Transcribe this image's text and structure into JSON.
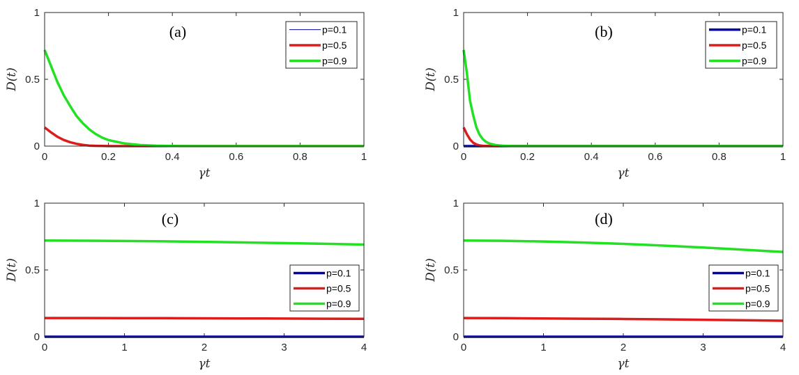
{
  "chart_data": [
    {
      "type": "line",
      "panel_label": "(a)",
      "xlabel": "γt",
      "ylabel": "D(t)",
      "xlim": [
        0,
        1
      ],
      "ylim": [
        0,
        1
      ],
      "xticks": [
        0,
        0.2,
        0.4,
        0.6,
        0.8,
        1
      ],
      "xtick_labels": [
        "0",
        "0.2",
        "0.4",
        "0.6",
        "0.8",
        "1"
      ],
      "yticks": [
        0,
        0.5,
        1
      ],
      "ytick_labels": [
        "0",
        "0.5",
        "1"
      ],
      "grid": false,
      "legend_position": "top-right",
      "x": [
        0,
        0.02,
        0.04,
        0.06,
        0.08,
        0.1,
        0.12,
        0.14,
        0.16,
        0.18,
        0.2,
        0.25,
        0.3,
        0.35,
        0.4,
        0.5,
        0.6,
        0.7,
        0.8,
        0.9,
        1
      ],
      "series": [
        {
          "name": "p=0.1",
          "color": "#0000aa",
          "line_width": "thin",
          "values": [
            0,
            0,
            0,
            0,
            0,
            0,
            0,
            0,
            0,
            0,
            0,
            0,
            0,
            0,
            0,
            0,
            0,
            0,
            0,
            0,
            0
          ]
        },
        {
          "name": "p=0.5",
          "color": "#dd1c1c",
          "line_width": "thick",
          "values": [
            0.14,
            0.103,
            0.07,
            0.046,
            0.029,
            0.017,
            0.009,
            0.004,
            0.002,
            0.001,
            0,
            0,
            0,
            0,
            0,
            0,
            0,
            0,
            0,
            0,
            0
          ]
        },
        {
          "name": "p=0.9",
          "color": "#22e022",
          "line_width": "thick",
          "values": [
            0.72,
            0.6,
            0.48,
            0.38,
            0.3,
            0.225,
            0.17,
            0.125,
            0.09,
            0.064,
            0.045,
            0.02,
            0.008,
            0.003,
            0.001,
            0,
            0,
            0,
            0,
            0,
            0
          ]
        }
      ]
    },
    {
      "type": "line",
      "panel_label": "(b)",
      "xlabel": "γt",
      "ylabel": "D(t)",
      "xlim": [
        0,
        1
      ],
      "ylim": [
        0,
        1
      ],
      "xticks": [
        0,
        0.2,
        0.4,
        0.6,
        0.8,
        1
      ],
      "xtick_labels": [
        "0",
        "0.2",
        "0.4",
        "0.6",
        "0.8",
        "1"
      ],
      "yticks": [
        0,
        0.5,
        1
      ],
      "ytick_labels": [
        "0",
        "0.5",
        "1"
      ],
      "grid": false,
      "legend_position": "top-right",
      "x": [
        0,
        0.01,
        0.02,
        0.03,
        0.04,
        0.05,
        0.06,
        0.07,
        0.08,
        0.1,
        0.12,
        0.14,
        0.16,
        0.2,
        0.3,
        0.4,
        0.5,
        0.6,
        0.7,
        0.8,
        0.9,
        1
      ],
      "series": [
        {
          "name": "p=0.1",
          "color": "#0000aa",
          "line_width": "thick",
          "values": [
            0,
            0,
            0,
            0,
            0,
            0,
            0,
            0,
            0,
            0,
            0,
            0,
            0,
            0,
            0,
            0,
            0,
            0,
            0,
            0,
            0,
            0
          ]
        },
        {
          "name": "p=0.5",
          "color": "#dd1c1c",
          "line_width": "thick",
          "values": [
            0.14,
            0.09,
            0.05,
            0.025,
            0.012,
            0.005,
            0.002,
            0.001,
            0,
            0,
            0,
            0,
            0,
            0,
            0,
            0,
            0,
            0,
            0,
            0,
            0,
            0
          ]
        },
        {
          "name": "p=0.9",
          "color": "#22e022",
          "line_width": "thick",
          "values": [
            0.72,
            0.55,
            0.34,
            0.23,
            0.14,
            0.085,
            0.052,
            0.032,
            0.02,
            0.008,
            0.003,
            0.001,
            0,
            0,
            0,
            0,
            0,
            0,
            0,
            0,
            0,
            0
          ]
        }
      ]
    },
    {
      "type": "line",
      "panel_label": "(c)",
      "xlabel": "γt",
      "ylabel": "D(t)",
      "xlim": [
        0,
        4
      ],
      "ylim": [
        0,
        1
      ],
      "xticks": [
        0,
        1,
        2,
        3,
        4
      ],
      "xtick_labels": [
        "0",
        "1",
        "2",
        "3",
        "4"
      ],
      "yticks": [
        0,
        0.5,
        1
      ],
      "ytick_labels": [
        "0",
        "0.5",
        "1"
      ],
      "grid": false,
      "legend_position": "bottom-right",
      "x": [
        0,
        0.5,
        1,
        1.5,
        2,
        2.5,
        3,
        3.5,
        4
      ],
      "series": [
        {
          "name": "p=0.1",
          "color": "#0000aa",
          "line_width": "thick",
          "values": [
            0,
            0,
            0,
            0,
            0,
            0,
            0,
            0,
            0
          ]
        },
        {
          "name": "p=0.5",
          "color": "#dd1c1c",
          "line_width": "thick",
          "values": [
            0.14,
            0.14,
            0.139,
            0.139,
            0.138,
            0.137,
            0.136,
            0.135,
            0.134
          ]
        },
        {
          "name": "p=0.9",
          "color": "#22e022",
          "line_width": "thick",
          "values": [
            0.72,
            0.719,
            0.717,
            0.714,
            0.71,
            0.706,
            0.701,
            0.696,
            0.69
          ]
        }
      ]
    },
    {
      "type": "line",
      "panel_label": "(d)",
      "xlabel": "γt",
      "ylabel": "D(t)",
      "xlim": [
        0,
        4
      ],
      "ylim": [
        0,
        1
      ],
      "xticks": [
        0,
        1,
        2,
        3,
        4
      ],
      "xtick_labels": [
        "0",
        "1",
        "2",
        "3",
        "4"
      ],
      "yticks": [
        0,
        0.5,
        1
      ],
      "ytick_labels": [
        "0",
        "0.5",
        "1"
      ],
      "grid": false,
      "legend_position": "bottom-right",
      "x": [
        0,
        0.5,
        1,
        1.5,
        2,
        2.5,
        3,
        3.5,
        4
      ],
      "series": [
        {
          "name": "p=0.1",
          "color": "#0000aa",
          "line_width": "thick",
          "values": [
            0,
            0,
            0,
            0,
            0,
            0,
            0,
            0,
            0
          ]
        },
        {
          "name": "p=0.5",
          "color": "#dd1c1c",
          "line_width": "thick",
          "values": [
            0.14,
            0.139,
            0.137,
            0.135,
            0.133,
            0.13,
            0.127,
            0.124,
            0.12
          ]
        },
        {
          "name": "p=0.9",
          "color": "#22e022",
          "line_width": "thick",
          "values": [
            0.72,
            0.718,
            0.713,
            0.705,
            0.695,
            0.682,
            0.668,
            0.652,
            0.635
          ]
        }
      ]
    }
  ]
}
